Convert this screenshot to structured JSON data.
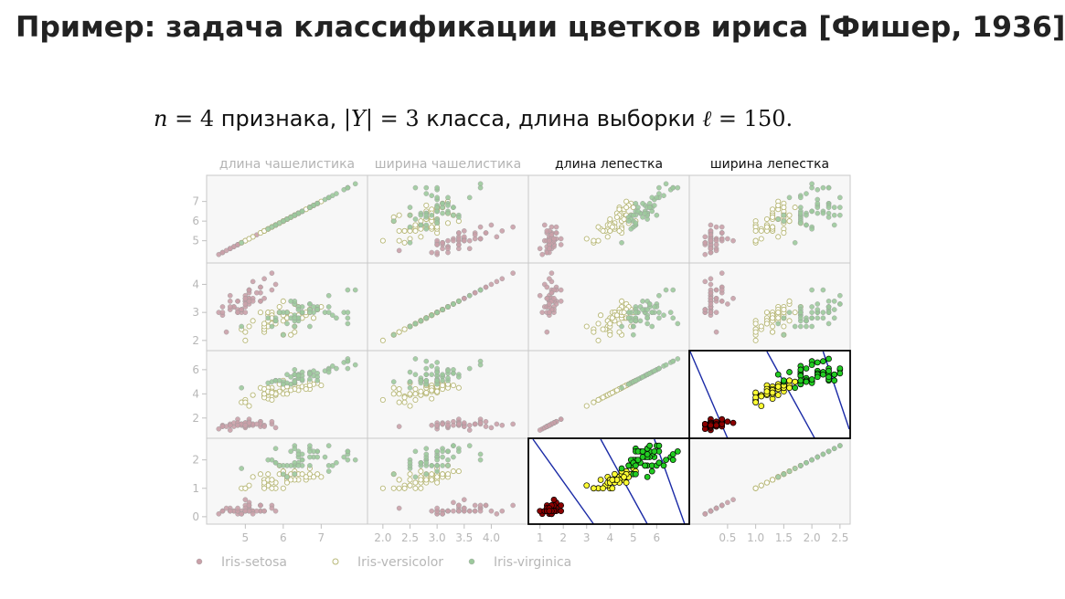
{
  "slide": {
    "title": "Пример: задача классификации цветков ириса [Фишер, 1936]",
    "subtitle": {
      "n_var": "n",
      "n_value": "4",
      "n_word": "признака,",
      "y_var": "|Y|",
      "y_value": "3",
      "y_word": "класса, длина выборки",
      "l_var": "ℓ",
      "l_value": "150."
    }
  },
  "chart_data": {
    "type": "scatter",
    "variables": [
      "длина чашелистика",
      "ширина чашелистика",
      "длина лепестка",
      "ширина лепестка"
    ],
    "highlighted_header_indices": [
      2,
      3
    ],
    "highlighted_panels": [
      [
        2,
        3
      ],
      [
        3,
        2
      ]
    ],
    "axis_ticks": {
      "left": [
        [
          5,
          6,
          7
        ],
        [
          2,
          3,
          4
        ],
        [
          2,
          4,
          6
        ],
        [
          0,
          1,
          2
        ]
      ],
      "bottom": [
        [
          5,
          6,
          7
        ],
        [
          "2.0",
          "2.5",
          "3.0",
          "3.5",
          "4.0"
        ],
        [
          1,
          2,
          3,
          4,
          5,
          6
        ],
        [
          "0.5",
          "1.0",
          "1.5",
          "2.0",
          "2.5"
        ]
      ]
    },
    "ranges": [
      [
        4.1,
        8.1
      ],
      [
        1.8,
        4.6
      ],
      [
        0.7,
        7.2
      ],
      [
        -0.1,
        2.6
      ]
    ],
    "legend": [
      {
        "name": "Iris-setosa",
        "color": "#c9a0a8",
        "filled": true
      },
      {
        "name": "Iris-versicolor",
        "color": "#cdcd96",
        "filled": false
      },
      {
        "name": "Iris-virginica",
        "color": "#9cc99c",
        "filled": true
      }
    ],
    "highlight_colors": {
      "Iris-setosa": "#8b0000",
      "Iris-versicolor": "#ffff33",
      "Iris-virginica": "#22cc22",
      "boundary": "#1a2aa6"
    },
    "boundaries_petal_length_vs_width": [
      {
        "w_at_l_min": 2.6,
        "w_at_l_max": -0.1,
        "l_min": 0.7,
        "l_max": 3.3
      },
      {
        "l_at_w_top": 3.6,
        "l_at_w_bottom": 5.6
      },
      {
        "l_at_w_top": 5.9,
        "l_at_w_bottom": 7.2
      }
    ],
    "species_samples": {
      "Iris-setosa": [
        [
          5.1,
          3.5,
          1.4,
          0.2
        ],
        [
          4.9,
          3.0,
          1.4,
          0.2
        ],
        [
          4.7,
          3.2,
          1.3,
          0.2
        ],
        [
          4.6,
          3.1,
          1.5,
          0.2
        ],
        [
          5.0,
          3.6,
          1.4,
          0.2
        ],
        [
          5.4,
          3.9,
          1.7,
          0.4
        ],
        [
          4.6,
          3.4,
          1.4,
          0.3
        ],
        [
          5.0,
          3.4,
          1.5,
          0.2
        ],
        [
          4.4,
          2.9,
          1.4,
          0.2
        ],
        [
          4.9,
          3.1,
          1.5,
          0.1
        ],
        [
          5.4,
          3.7,
          1.5,
          0.2
        ],
        [
          4.8,
          3.4,
          1.6,
          0.2
        ],
        [
          4.8,
          3.0,
          1.4,
          0.1
        ],
        [
          4.3,
          3.0,
          1.1,
          0.1
        ],
        [
          5.8,
          4.0,
          1.2,
          0.2
        ],
        [
          5.7,
          4.4,
          1.5,
          0.4
        ],
        [
          5.4,
          3.9,
          1.3,
          0.4
        ],
        [
          5.1,
          3.5,
          1.4,
          0.3
        ],
        [
          5.7,
          3.8,
          1.7,
          0.3
        ],
        [
          5.1,
          3.8,
          1.5,
          0.3
        ],
        [
          5.4,
          3.4,
          1.7,
          0.2
        ],
        [
          5.1,
          3.7,
          1.5,
          0.4
        ],
        [
          4.6,
          3.6,
          1.0,
          0.2
        ],
        [
          5.1,
          3.3,
          1.7,
          0.5
        ],
        [
          4.8,
          3.4,
          1.9,
          0.2
        ],
        [
          5.0,
          3.0,
          1.6,
          0.2
        ],
        [
          5.0,
          3.4,
          1.6,
          0.4
        ],
        [
          5.2,
          3.5,
          1.5,
          0.2
        ],
        [
          5.2,
          3.4,
          1.4,
          0.2
        ],
        [
          4.7,
          3.2,
          1.6,
          0.2
        ],
        [
          4.8,
          3.1,
          1.6,
          0.2
        ],
        [
          5.4,
          3.4,
          1.5,
          0.4
        ],
        [
          5.2,
          4.1,
          1.5,
          0.1
        ],
        [
          5.5,
          4.2,
          1.4,
          0.2
        ],
        [
          4.9,
          3.1,
          1.5,
          0.1
        ],
        [
          5.0,
          3.2,
          1.2,
          0.2
        ],
        [
          5.5,
          3.5,
          1.3,
          0.2
        ],
        [
          4.9,
          3.1,
          1.5,
          0.1
        ],
        [
          4.4,
          3.0,
          1.3,
          0.2
        ],
        [
          5.1,
          3.4,
          1.5,
          0.2
        ],
        [
          5.0,
          3.5,
          1.3,
          0.3
        ],
        [
          4.5,
          2.3,
          1.3,
          0.3
        ],
        [
          4.4,
          3.2,
          1.3,
          0.2
        ],
        [
          5.0,
          3.5,
          1.6,
          0.6
        ],
        [
          5.1,
          3.8,
          1.9,
          0.4
        ],
        [
          4.8,
          3.0,
          1.4,
          0.3
        ],
        [
          5.1,
          3.8,
          1.6,
          0.2
        ],
        [
          4.6,
          3.2,
          1.4,
          0.2
        ],
        [
          5.3,
          3.7,
          1.5,
          0.2
        ],
        [
          5.0,
          3.3,
          1.4,
          0.2
        ]
      ],
      "Iris-versicolor": [
        [
          7.0,
          3.2,
          4.7,
          1.4
        ],
        [
          6.4,
          3.2,
          4.5,
          1.5
        ],
        [
          6.9,
          3.1,
          4.9,
          1.5
        ],
        [
          5.5,
          2.3,
          4.0,
          1.3
        ],
        [
          6.5,
          2.8,
          4.6,
          1.5
        ],
        [
          5.7,
          2.8,
          4.5,
          1.3
        ],
        [
          6.3,
          3.3,
          4.7,
          1.6
        ],
        [
          4.9,
          2.4,
          3.3,
          1.0
        ],
        [
          6.6,
          2.9,
          4.6,
          1.3
        ],
        [
          5.2,
          2.7,
          3.9,
          1.4
        ],
        [
          5.0,
          2.0,
          3.5,
          1.0
        ],
        [
          5.9,
          3.0,
          4.2,
          1.5
        ],
        [
          6.0,
          2.2,
          4.0,
          1.0
        ],
        [
          6.1,
          2.9,
          4.7,
          1.4
        ],
        [
          5.6,
          2.9,
          3.6,
          1.3
        ],
        [
          6.7,
          3.1,
          4.4,
          1.4
        ],
        [
          5.6,
          3.0,
          4.5,
          1.5
        ],
        [
          5.8,
          2.7,
          4.1,
          1.0
        ],
        [
          6.2,
          2.2,
          4.5,
          1.5
        ],
        [
          5.6,
          2.5,
          3.9,
          1.1
        ],
        [
          5.9,
          3.2,
          4.8,
          1.8
        ],
        [
          6.1,
          2.8,
          4.0,
          1.3
        ],
        [
          6.3,
          2.5,
          4.9,
          1.5
        ],
        [
          6.1,
          2.8,
          4.7,
          1.2
        ],
        [
          6.4,
          2.9,
          4.3,
          1.3
        ],
        [
          6.6,
          3.0,
          4.4,
          1.4
        ],
        [
          6.8,
          2.8,
          4.8,
          1.4
        ],
        [
          6.7,
          3.0,
          5.0,
          1.7
        ],
        [
          6.0,
          2.9,
          4.5,
          1.5
        ],
        [
          5.7,
          2.6,
          3.5,
          1.0
        ],
        [
          5.5,
          2.4,
          3.8,
          1.1
        ],
        [
          5.5,
          2.4,
          3.7,
          1.0
        ],
        [
          5.8,
          2.7,
          3.9,
          1.2
        ],
        [
          6.0,
          2.7,
          5.1,
          1.6
        ],
        [
          5.4,
          3.0,
          4.5,
          1.5
        ],
        [
          6.0,
          3.4,
          4.5,
          1.6
        ],
        [
          6.7,
          3.1,
          4.7,
          1.5
        ],
        [
          6.3,
          2.3,
          4.4,
          1.3
        ],
        [
          5.6,
          3.0,
          4.1,
          1.3
        ],
        [
          5.5,
          2.5,
          4.0,
          1.3
        ],
        [
          5.5,
          2.6,
          4.4,
          1.2
        ],
        [
          6.1,
          3.0,
          4.6,
          1.4
        ],
        [
          5.8,
          2.6,
          4.0,
          1.2
        ],
        [
          5.0,
          2.3,
          3.3,
          1.0
        ],
        [
          5.6,
          2.7,
          4.2,
          1.3
        ],
        [
          5.7,
          3.0,
          4.2,
          1.2
        ],
        [
          5.7,
          2.9,
          4.2,
          1.3
        ],
        [
          6.2,
          2.9,
          4.3,
          1.3
        ],
        [
          5.1,
          2.5,
          3.0,
          1.1
        ],
        [
          5.7,
          2.8,
          4.1,
          1.3
        ]
      ],
      "Iris-virginica": [
        [
          6.3,
          3.3,
          6.0,
          2.5
        ],
        [
          5.8,
          2.7,
          5.1,
          1.9
        ],
        [
          7.1,
          3.0,
          5.9,
          2.1
        ],
        [
          6.3,
          2.9,
          5.6,
          1.8
        ],
        [
          6.5,
          3.0,
          5.8,
          2.2
        ],
        [
          7.6,
          3.0,
          6.6,
          2.1
        ],
        [
          4.9,
          2.5,
          4.5,
          1.7
        ],
        [
          7.3,
          2.9,
          6.3,
          1.8
        ],
        [
          6.7,
          2.5,
          5.8,
          1.8
        ],
        [
          7.2,
          3.6,
          6.1,
          2.5
        ],
        [
          6.5,
          3.2,
          5.1,
          2.0
        ],
        [
          6.4,
          2.7,
          5.3,
          1.9
        ],
        [
          6.8,
          3.0,
          5.5,
          2.1
        ],
        [
          5.7,
          2.5,
          5.0,
          2.0
        ],
        [
          5.8,
          2.8,
          5.1,
          2.4
        ],
        [
          6.4,
          3.2,
          5.3,
          2.3
        ],
        [
          6.5,
          3.0,
          5.5,
          1.8
        ],
        [
          7.7,
          3.8,
          6.7,
          2.2
        ],
        [
          7.7,
          2.6,
          6.9,
          2.3
        ],
        [
          6.0,
          2.2,
          5.0,
          1.5
        ],
        [
          6.9,
          3.2,
          5.7,
          2.3
        ],
        [
          5.6,
          2.8,
          4.9,
          2.0
        ],
        [
          7.7,
          2.8,
          6.7,
          2.0
        ],
        [
          6.3,
          2.7,
          4.9,
          1.8
        ],
        [
          6.7,
          3.3,
          5.7,
          2.1
        ],
        [
          7.2,
          3.2,
          6.0,
          1.8
        ],
        [
          6.2,
          2.8,
          4.8,
          1.8
        ],
        [
          6.1,
          3.0,
          4.9,
          1.8
        ],
        [
          6.4,
          2.8,
          5.6,
          2.1
        ],
        [
          7.2,
          3.0,
          5.8,
          1.6
        ],
        [
          7.4,
          2.8,
          6.1,
          1.9
        ],
        [
          7.9,
          3.8,
          6.4,
          2.0
        ],
        [
          6.4,
          2.8,
          5.6,
          2.2
        ],
        [
          6.3,
          2.8,
          5.1,
          1.5
        ],
        [
          6.1,
          2.6,
          5.6,
          1.4
        ],
        [
          7.7,
          3.0,
          6.1,
          2.3
        ],
        [
          6.3,
          3.4,
          5.6,
          2.4
        ],
        [
          6.4,
          3.1,
          5.5,
          1.8
        ],
        [
          6.0,
          3.0,
          4.8,
          1.8
        ],
        [
          6.9,
          3.1,
          5.4,
          2.1
        ],
        [
          6.7,
          3.1,
          5.6,
          2.4
        ],
        [
          6.9,
          3.1,
          5.1,
          2.3
        ],
        [
          5.8,
          2.7,
          5.1,
          1.9
        ],
        [
          6.8,
          3.2,
          5.9,
          2.3
        ],
        [
          6.7,
          3.3,
          5.7,
          2.5
        ],
        [
          6.7,
          3.0,
          5.2,
          2.3
        ],
        [
          6.3,
          2.5,
          5.0,
          1.9
        ],
        [
          6.5,
          3.0,
          5.2,
          2.0
        ],
        [
          6.2,
          3.4,
          5.4,
          2.3
        ],
        [
          5.9,
          3.0,
          5.1,
          1.8
        ]
      ]
    }
  }
}
